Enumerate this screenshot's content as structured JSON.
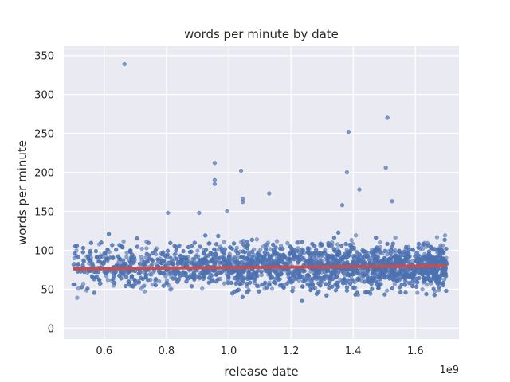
{
  "chart_data": {
    "type": "scatter",
    "title": "words per minute by date",
    "xlabel": "release date",
    "ylabel": "words per minute",
    "x_offset_label": "1e9",
    "xlim": [
      0.47,
      1.74
    ],
    "ylim": [
      -14,
      362
    ],
    "x_ticks": [
      0.6,
      0.8,
      1.0,
      1.2,
      1.4,
      1.6
    ],
    "x_tick_labels": [
      "0.6",
      "0.8",
      "1.0",
      "1.2",
      "1.4",
      "1.6"
    ],
    "y_ticks": [
      0,
      50,
      100,
      150,
      200,
      250,
      300,
      350
    ],
    "y_tick_labels": [
      "0",
      "50",
      "100",
      "150",
      "200",
      "250",
      "300",
      "350"
    ],
    "grid": true,
    "background": "#eaeaf2",
    "point_color": "#4c72b0",
    "trend_color": "#c44e52",
    "series": [
      {
        "kind": "points",
        "x_range": [
          0.5,
          1.7
        ],
        "y_typical_range": [
          0,
          150
        ],
        "y_center": 80,
        "density_note": "dense cloud, densest between 1.3 and 1.6",
        "outliers": [
          [
            0.665,
            339
          ],
          [
            1.385,
            252
          ],
          [
            1.51,
            270
          ],
          [
            1.505,
            206
          ],
          [
            1.38,
            200
          ],
          [
            0.955,
            212
          ],
          [
            0.955,
            190
          ],
          [
            0.955,
            185
          ],
          [
            1.04,
            202
          ],
          [
            1.045,
            166
          ],
          [
            1.045,
            162
          ],
          [
            1.13,
            173
          ],
          [
            1.42,
            178
          ],
          [
            1.365,
            158
          ],
          [
            1.525,
            163
          ],
          [
            0.905,
            148
          ],
          [
            0.995,
            150
          ],
          [
            0.805,
            148
          ]
        ]
      },
      {
        "kind": "trend",
        "x": [
          0.5,
          1.7
        ],
        "y": [
          76,
          80
        ]
      }
    ]
  }
}
